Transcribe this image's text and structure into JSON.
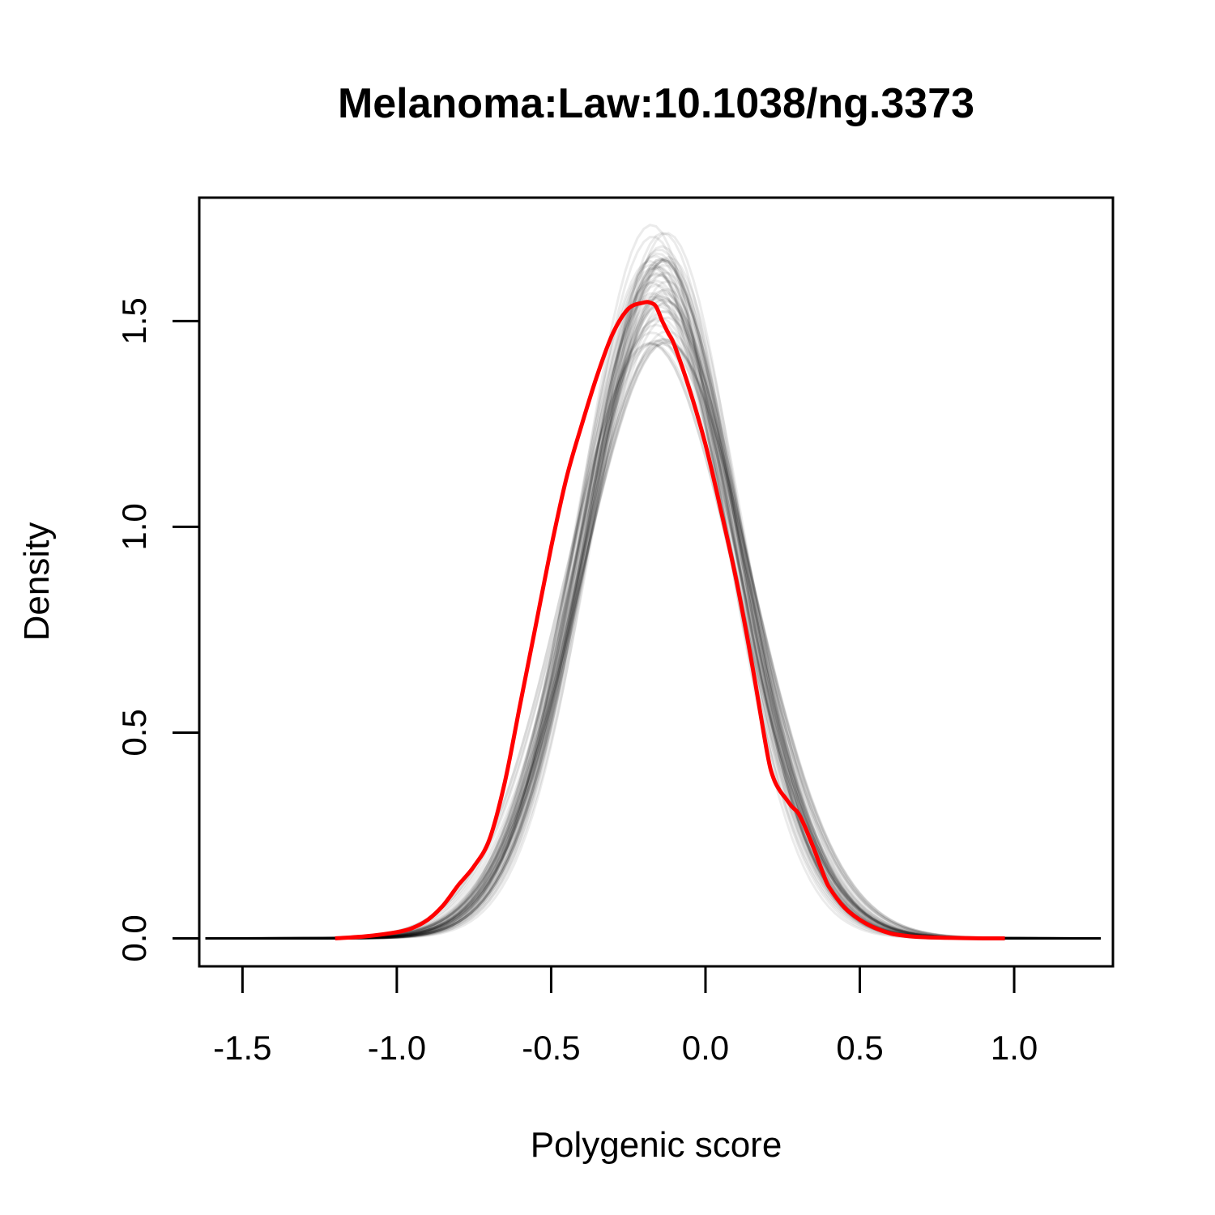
{
  "chart_data": {
    "type": "line",
    "title": "Melanoma:Law:10.1038/ng.3373",
    "xlabel": "Polygenic score",
    "ylabel": "Density",
    "xlim": [
      -1.64,
      1.32
    ],
    "ylim": [
      -0.068,
      1.8
    ],
    "x_ticks": [
      -1.5,
      -1.0,
      -0.5,
      0.0,
      0.5,
      1.0
    ],
    "x_tick_labels": [
      "-1.5",
      "-1.0",
      "-0.5",
      "0.0",
      "0.5",
      "1.0"
    ],
    "y_ticks": [
      0.0,
      0.5,
      1.0,
      1.5
    ],
    "y_tick_labels": [
      "0.0",
      "0.5",
      "1.0",
      "1.5"
    ],
    "grid": false,
    "legend": "none",
    "colors": {
      "observed": "#ff0000",
      "simulated": "#000000",
      "axis": "#000000"
    },
    "simulated_band": {
      "description_count": 60,
      "mean": -0.15,
      "sd": 0.255,
      "mean_jitter": 0.03,
      "sd_jitter": 0.025,
      "x_range": [
        -1.62,
        1.3
      ]
    },
    "series": [
      {
        "name": "",
        "x": [
          -1.2,
          -1.1,
          -1.0,
          -0.95,
          -0.9,
          -0.85,
          -0.8,
          -0.75,
          -0.7,
          -0.65,
          -0.6,
          -0.55,
          -0.5,
          -0.45,
          -0.4,
          -0.35,
          -0.3,
          -0.25,
          -0.2,
          -0.18,
          -0.16,
          -0.14,
          -0.12,
          -0.1,
          -0.05,
          0.0,
          0.05,
          0.1,
          0.15,
          0.2,
          0.22,
          0.24,
          0.26,
          0.28,
          0.3,
          0.32,
          0.35,
          0.38,
          0.4,
          0.45,
          0.5,
          0.55,
          0.6,
          0.65,
          0.7,
          0.8,
          0.9,
          0.97
        ],
        "y": [
          0.0,
          0.005,
          0.015,
          0.025,
          0.045,
          0.08,
          0.13,
          0.175,
          0.24,
          0.38,
          0.57,
          0.76,
          0.95,
          1.12,
          1.25,
          1.37,
          1.47,
          1.53,
          1.545,
          1.545,
          1.535,
          1.5,
          1.47,
          1.44,
          1.33,
          1.2,
          1.04,
          0.87,
          0.67,
          0.45,
          0.39,
          0.36,
          0.34,
          0.32,
          0.305,
          0.275,
          0.22,
          0.16,
          0.125,
          0.075,
          0.045,
          0.025,
          0.012,
          0.006,
          0.003,
          0.001,
          0.0,
          0.0
        ]
      }
    ]
  }
}
